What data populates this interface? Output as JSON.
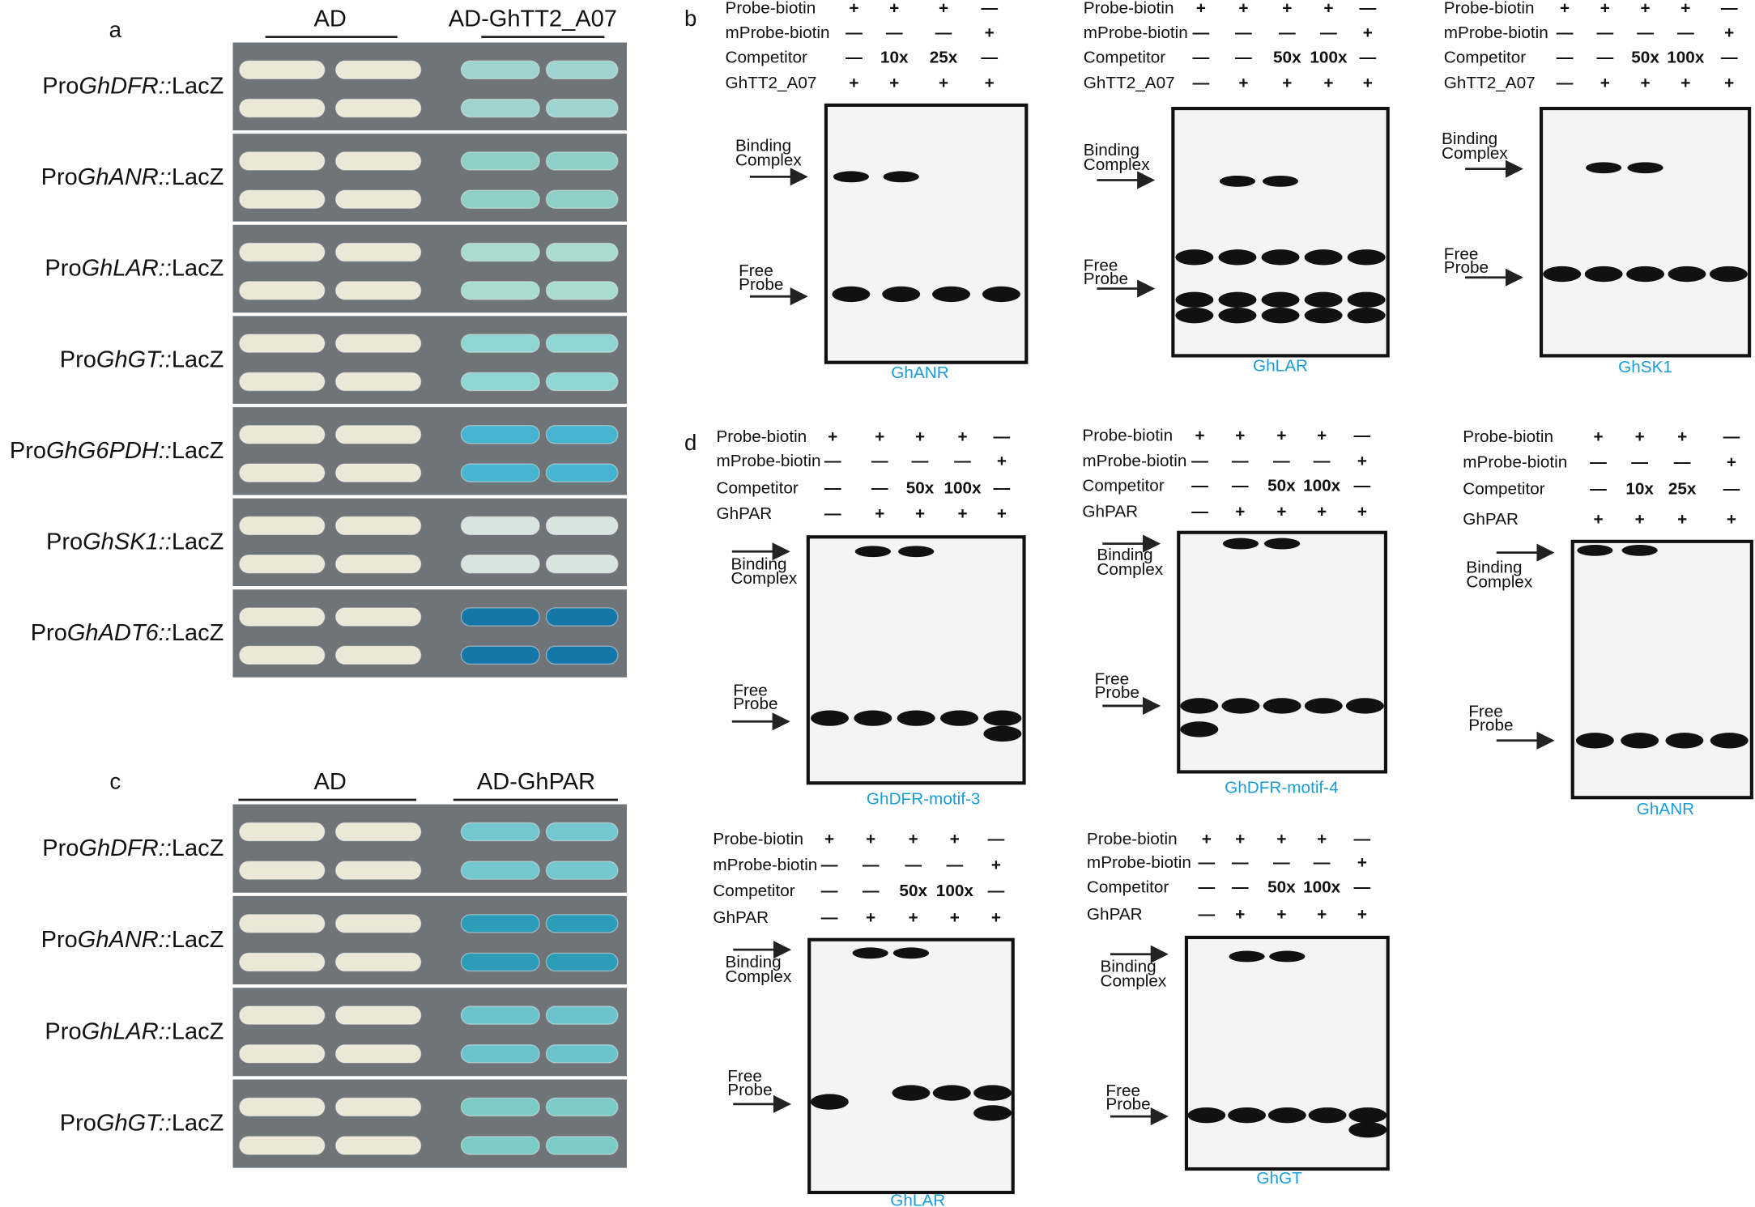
{
  "panel_a": {
    "letter": "a",
    "columns": [
      "AD",
      "AD-GhTT2_A07"
    ],
    "rows": [
      {
        "prefix": "Pro",
        "gene": "GhDFR::",
        "suffix": "LacZ"
      },
      {
        "prefix": "Pro",
        "gene": "GhANR::",
        "suffix": "LacZ"
      },
      {
        "prefix": "Pro",
        "gene": "GhLAR::",
        "suffix": "LacZ"
      },
      {
        "prefix": "Pro",
        "gene": "GhGT::",
        "suffix": "LacZ"
      },
      {
        "prefix": "Pro",
        "gene": "GhG6PDH::",
        "suffix": "LacZ"
      },
      {
        "prefix": "Pro",
        "gene": "GhSK1::",
        "suffix": "LacZ"
      },
      {
        "prefix": "Pro",
        "gene": "GhADT6::",
        "suffix": "LacZ"
      }
    ]
  },
  "panel_b": {
    "letter": "b",
    "gels": [
      {
        "rows": [
          {
            "name": "Probe-biotin",
            "lanes": [
              "+",
              "+",
              "+",
              "—"
            ]
          },
          {
            "name": "mProbe-biotin",
            "lanes": [
              "—",
              "—",
              "—",
              "+"
            ]
          },
          {
            "name": "Competitor",
            "lanes": [
              "—",
              "10x",
              "25x",
              "—"
            ]
          },
          {
            "name": "GhTT2_A07",
            "lanes": [
              "+",
              "+",
              "+",
              "+"
            ]
          }
        ],
        "binding": [
          "Binding",
          "Complex"
        ],
        "free": [
          "Free",
          "Probe"
        ],
        "caption": "GhANR"
      },
      {
        "rows": [
          {
            "name": "Probe-biotin",
            "lanes": [
              "+",
              "+",
              "+",
              "+",
              "—"
            ]
          },
          {
            "name": "mProbe-biotin",
            "lanes": [
              "—",
              "—",
              "—",
              "—",
              "+"
            ]
          },
          {
            "name": "Competitor",
            "lanes": [
              "—",
              "—",
              "50x",
              "100x",
              "—"
            ]
          },
          {
            "name": "GhTT2_A07",
            "lanes": [
              "—",
              "+",
              "+",
              "+",
              "+"
            ]
          }
        ],
        "binding": [
          "Binding",
          "Complex"
        ],
        "free": [
          "Free",
          "Probe"
        ],
        "caption": "GhLAR"
      },
      {
        "rows": [
          {
            "name": "Probe-biotin",
            "lanes": [
              "+",
              "+",
              "+",
              "+",
              "—"
            ]
          },
          {
            "name": "mProbe-biotin",
            "lanes": [
              "—",
              "—",
              "—",
              "—",
              "+"
            ]
          },
          {
            "name": "Competitor",
            "lanes": [
              "—",
              "—",
              "50x",
              "100x",
              "—"
            ]
          },
          {
            "name": "GhTT2_A07",
            "lanes": [
              "—",
              "+",
              "+",
              "+",
              "+"
            ]
          }
        ],
        "binding": [
          "Binding",
          "Complex"
        ],
        "free": [
          "Free",
          "Probe"
        ],
        "caption": "GhSK1"
      }
    ]
  },
  "panel_c": {
    "letter": "c",
    "columns": [
      "AD",
      "AD-GhPAR"
    ],
    "rows": [
      {
        "prefix": "Pro",
        "gene": "GhDFR::",
        "suffix": "LacZ"
      },
      {
        "prefix": "Pro",
        "gene": "GhANR::",
        "suffix": "LacZ"
      },
      {
        "prefix": "Pro",
        "gene": "GhLAR::",
        "suffix": "LacZ"
      },
      {
        "prefix": "Pro",
        "gene": "GhGT::",
        "suffix": "LacZ"
      }
    ]
  },
  "panel_d": {
    "letter": "d",
    "gels": [
      {
        "rows": [
          {
            "name": "Probe-biotin",
            "lanes": [
              "+",
              "+",
              "+",
              "+",
              "—"
            ]
          },
          {
            "name": "mProbe-biotin",
            "lanes": [
              "—",
              "—",
              "—",
              "—",
              "+"
            ]
          },
          {
            "name": "Competitor",
            "lanes": [
              "—",
              "—",
              "50x",
              "100x",
              "—"
            ]
          },
          {
            "name": "GhPAR",
            "lanes": [
              "—",
              "+",
              "+",
              "+",
              "+"
            ]
          }
        ],
        "binding": [
          "Binding",
          "Complex"
        ],
        "free": [
          "Free",
          "Probe"
        ],
        "caption": "GhDFR-motif-3"
      },
      {
        "rows": [
          {
            "name": "Probe-biotin",
            "lanes": [
              "+",
              "+",
              "+",
              "+",
              "—"
            ]
          },
          {
            "name": "mProbe-biotin",
            "lanes": [
              "—",
              "—",
              "—",
              "—",
              "+"
            ]
          },
          {
            "name": "Competitor",
            "lanes": [
              "—",
              "—",
              "50x",
              "100x",
              "—"
            ]
          },
          {
            "name": "GhPAR",
            "lanes": [
              "—",
              "+",
              "+",
              "+",
              "+"
            ]
          }
        ],
        "binding": [
          "Binding",
          "Complex"
        ],
        "free": [
          "Free",
          "Probe"
        ],
        "caption": "GhDFR-motif-4"
      },
      {
        "rows": [
          {
            "name": "Probe-biotin",
            "lanes": [
              "+",
              "+",
              "+",
              "—"
            ]
          },
          {
            "name": "mProbe-biotin",
            "lanes": [
              "—",
              "—",
              "—",
              "+"
            ]
          },
          {
            "name": "Competitor",
            "lanes": [
              "—",
              "10x",
              "25x",
              "—"
            ]
          },
          {
            "name": "GhPAR",
            "lanes": [
              "+",
              "+",
              "+",
              "+"
            ]
          }
        ],
        "binding": [
          "Binding",
          "Complex"
        ],
        "free": [
          "Free",
          "Probe"
        ],
        "caption": "GhANR"
      },
      {
        "rows": [
          {
            "name": "Probe-biotin",
            "lanes": [
              "+",
              "+",
              "+",
              "+",
              "—"
            ]
          },
          {
            "name": "mProbe-biotin",
            "lanes": [
              "—",
              "—",
              "—",
              "—",
              "+"
            ]
          },
          {
            "name": "Competitor",
            "lanes": [
              "—",
              "—",
              "50x",
              "100x",
              "—"
            ]
          },
          {
            "name": "GhPAR",
            "lanes": [
              "—",
              "+",
              "+",
              "+",
              "+"
            ]
          }
        ],
        "binding": [
          "Binding",
          "Complex"
        ],
        "free": [
          "Free",
          "Probe"
        ],
        "caption": "GhLAR"
      },
      {
        "rows": [
          {
            "name": "Probe-biotin",
            "lanes": [
              "+",
              "+",
              "+",
              "+",
              "—"
            ]
          },
          {
            "name": "mProbe-biotin",
            "lanes": [
              "—",
              "—",
              "—",
              "—",
              "+"
            ]
          },
          {
            "name": "Competitor",
            "lanes": [
              "—",
              "—",
              "50x",
              "100x",
              "—"
            ]
          },
          {
            "name": "GhPAR",
            "lanes": [
              "—",
              "+",
              "+",
              "+",
              "+"
            ]
          }
        ],
        "binding": [
          "Binding",
          "Complex"
        ],
        "free": [
          "Free",
          "Probe"
        ],
        "caption": "GhGT"
      }
    ]
  }
}
